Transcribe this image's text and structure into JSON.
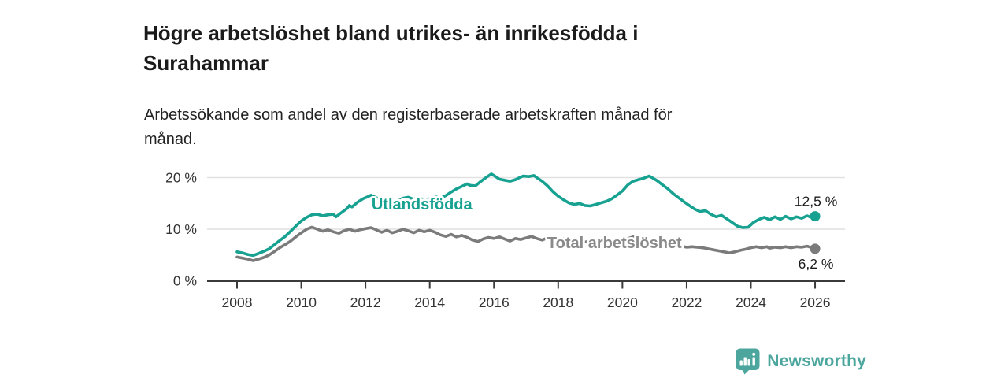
{
  "header": {
    "title_lines": [
      "Högre arbetslöshet bland utrikes- än inrikesfödda i",
      "Surahammar"
    ],
    "subtitle_lines": [
      "Arbetssökande som andel av den registerbaserade arbetskraften månad för",
      "månad."
    ]
  },
  "footer": {
    "brand": "Newsworthy",
    "logo_icon": "bar-chart-speech-bubble-icon"
  },
  "colors": {
    "teal_line": "#16a191",
    "teal_label": "#16a191",
    "gray_line": "#7b7b7b",
    "gray_label": "#8a8a8a",
    "axis": "#3a3a3a",
    "gridline": "#e1e1e1",
    "tick_text": "#333333",
    "value_text": "#1b1b1b",
    "logo_teal": "#4ca69e"
  },
  "chart_data": {
    "type": "line",
    "title": "Högre arbetslöshet bland utrikes- än inrikesfödda i Surahammar",
    "subtitle": "Arbetssökande som andel av den registerbaserade arbetskraften månad för månad.",
    "xlabel": "",
    "ylabel": "",
    "ylim": [
      0,
      22
    ],
    "xlim": [
      2007.1,
      2026.9
    ],
    "grid": "horizontal",
    "legend_position": "inline-labels",
    "yticks": [
      {
        "value": 0,
        "label": "0 %"
      },
      {
        "value": 10,
        "label": "10 %"
      },
      {
        "value": 20,
        "label": "20 %"
      }
    ],
    "xticks": [
      {
        "value": 2008,
        "label": "2008"
      },
      {
        "value": 2010,
        "label": "2010"
      },
      {
        "value": 2012,
        "label": "2012"
      },
      {
        "value": 2014,
        "label": "2014"
      },
      {
        "value": 2016,
        "label": "2016"
      },
      {
        "value": 2018,
        "label": "2018"
      },
      {
        "value": 2020,
        "label": "2020"
      },
      {
        "value": 2022,
        "label": "2022"
      },
      {
        "value": 2024,
        "label": "2024"
      },
      {
        "value": 2026,
        "label": "2026"
      }
    ],
    "series": [
      {
        "name": "Total arbetslöshet",
        "color": "#7b7b7b",
        "label_color": "#8a8a8a",
        "label_anchor": {
          "year": 2017.66,
          "value": 6.34
        },
        "end_label": "6,2 %",
        "end_label_side": "below",
        "end_value": 6.2,
        "points": [
          [
            2008.0,
            4.6
          ],
          [
            2008.17,
            4.4
          ],
          [
            2008.33,
            4.2
          ],
          [
            2008.5,
            3.9
          ],
          [
            2008.67,
            4.2
          ],
          [
            2008.83,
            4.5
          ],
          [
            2009.0,
            5.0
          ],
          [
            2009.17,
            5.7
          ],
          [
            2009.33,
            6.4
          ],
          [
            2009.5,
            7.0
          ],
          [
            2009.67,
            7.7
          ],
          [
            2009.83,
            8.5
          ],
          [
            2010.0,
            9.3
          ],
          [
            2010.17,
            10.0
          ],
          [
            2010.33,
            10.4
          ],
          [
            2010.5,
            10.0
          ],
          [
            2010.67,
            9.6
          ],
          [
            2010.83,
            9.9
          ],
          [
            2011.0,
            9.5
          ],
          [
            2011.17,
            9.2
          ],
          [
            2011.33,
            9.7
          ],
          [
            2011.5,
            10.0
          ],
          [
            2011.67,
            9.6
          ],
          [
            2011.83,
            9.9
          ],
          [
            2012.0,
            10.1
          ],
          [
            2012.17,
            10.3
          ],
          [
            2012.33,
            9.9
          ],
          [
            2012.5,
            9.4
          ],
          [
            2012.67,
            9.8
          ],
          [
            2012.83,
            9.3
          ],
          [
            2013.0,
            9.6
          ],
          [
            2013.17,
            10.0
          ],
          [
            2013.33,
            9.7
          ],
          [
            2013.5,
            9.3
          ],
          [
            2013.67,
            9.8
          ],
          [
            2013.83,
            9.5
          ],
          [
            2014.0,
            9.8
          ],
          [
            2014.17,
            9.4
          ],
          [
            2014.33,
            8.9
          ],
          [
            2014.5,
            8.6
          ],
          [
            2014.67,
            9.0
          ],
          [
            2014.83,
            8.5
          ],
          [
            2015.0,
            8.8
          ],
          [
            2015.17,
            8.4
          ],
          [
            2015.33,
            7.9
          ],
          [
            2015.5,
            7.6
          ],
          [
            2015.67,
            8.1
          ],
          [
            2015.83,
            8.4
          ],
          [
            2016.0,
            8.2
          ],
          [
            2016.17,
            8.5
          ],
          [
            2016.33,
            8.1
          ],
          [
            2016.5,
            7.7
          ],
          [
            2016.67,
            8.2
          ],
          [
            2016.83,
            8.0
          ],
          [
            2017.0,
            8.3
          ],
          [
            2017.17,
            8.6
          ],
          [
            2017.33,
            8.2
          ],
          [
            2017.5,
            7.9
          ],
          [
            2017.67,
            8.3
          ],
          [
            2017.83,
            8.0
          ],
          [
            2018.0,
            7.8
          ],
          [
            2018.17,
            8.1
          ],
          [
            2018.33,
            7.7
          ],
          [
            2018.5,
            7.4
          ],
          [
            2018.67,
            7.8
          ],
          [
            2018.83,
            7.5
          ],
          [
            2019.0,
            7.7
          ],
          [
            2019.17,
            7.4
          ],
          [
            2019.33,
            7.1
          ],
          [
            2019.5,
            7.3
          ],
          [
            2019.67,
            7.6
          ],
          [
            2019.83,
            7.4
          ],
          [
            2020.0,
            7.7
          ],
          [
            2020.17,
            8.2
          ],
          [
            2020.33,
            8.5
          ],
          [
            2020.5,
            8.3
          ],
          [
            2020.67,
            8.0
          ],
          [
            2020.83,
            7.8
          ],
          [
            2021.0,
            7.6
          ],
          [
            2021.17,
            7.3
          ],
          [
            2021.33,
            7.0
          ],
          [
            2021.5,
            6.8
          ],
          [
            2021.67,
            7.0
          ],
          [
            2021.83,
            6.7
          ],
          [
            2022.0,
            6.5
          ],
          [
            2022.17,
            6.6
          ],
          [
            2022.33,
            6.5
          ],
          [
            2022.5,
            6.4
          ],
          [
            2022.67,
            6.2
          ],
          [
            2022.83,
            6.0
          ],
          [
            2023.0,
            5.8
          ],
          [
            2023.17,
            5.6
          ],
          [
            2023.33,
            5.4
          ],
          [
            2023.5,
            5.6
          ],
          [
            2023.67,
            5.9
          ],
          [
            2023.83,
            6.1
          ],
          [
            2024.0,
            6.4
          ],
          [
            2024.17,
            6.6
          ],
          [
            2024.33,
            6.4
          ],
          [
            2024.5,
            6.6
          ],
          [
            2024.58,
            6.3
          ],
          [
            2024.75,
            6.5
          ],
          [
            2024.92,
            6.4
          ],
          [
            2025.08,
            6.6
          ],
          [
            2025.25,
            6.4
          ],
          [
            2025.42,
            6.6
          ],
          [
            2025.58,
            6.5
          ],
          [
            2025.75,
            6.7
          ],
          [
            2025.92,
            6.4
          ],
          [
            2026.0,
            6.2
          ]
        ]
      },
      {
        "name": "Utlandsfödda",
        "color": "#16a191",
        "label_color": "#16a191",
        "label_anchor": {
          "year": 2012.19,
          "value": 13.8
        },
        "end_label": "12,5 %",
        "end_label_side": "above",
        "end_value": 12.5,
        "points": [
          [
            2008.0,
            5.6
          ],
          [
            2008.17,
            5.4
          ],
          [
            2008.33,
            5.1
          ],
          [
            2008.5,
            4.9
          ],
          [
            2008.67,
            5.3
          ],
          [
            2008.83,
            5.7
          ],
          [
            2009.0,
            6.2
          ],
          [
            2009.17,
            7.0
          ],
          [
            2009.33,
            7.8
          ],
          [
            2009.5,
            8.6
          ],
          [
            2009.67,
            9.6
          ],
          [
            2009.83,
            10.6
          ],
          [
            2010.0,
            11.6
          ],
          [
            2010.17,
            12.3
          ],
          [
            2010.33,
            12.8
          ],
          [
            2010.5,
            12.9
          ],
          [
            2010.67,
            12.6
          ],
          [
            2010.83,
            12.8
          ],
          [
            2011.0,
            12.9
          ],
          [
            2011.08,
            12.4
          ],
          [
            2011.25,
            13.2
          ],
          [
            2011.42,
            14.0
          ],
          [
            2011.5,
            14.6
          ],
          [
            2011.58,
            14.3
          ],
          [
            2011.75,
            15.2
          ],
          [
            2011.92,
            15.9
          ],
          [
            2012.08,
            16.3
          ],
          [
            2012.17,
            16.6
          ],
          [
            2012.33,
            16.1
          ],
          [
            2012.5,
            15.7
          ],
          [
            2012.67,
            15.9
          ],
          [
            2012.83,
            15.4
          ],
          [
            2013.0,
            15.6
          ],
          [
            2013.17,
            16.0
          ],
          [
            2013.33,
            16.2
          ],
          [
            2013.5,
            15.8
          ],
          [
            2013.67,
            16.1
          ],
          [
            2013.83,
            15.7
          ],
          [
            2014.0,
            15.9
          ],
          [
            2014.17,
            16.3
          ],
          [
            2014.33,
            16.0
          ],
          [
            2014.5,
            16.5
          ],
          [
            2014.67,
            17.2
          ],
          [
            2014.83,
            17.8
          ],
          [
            2015.0,
            18.3
          ],
          [
            2015.17,
            18.8
          ],
          [
            2015.25,
            18.5
          ],
          [
            2015.42,
            18.4
          ],
          [
            2015.58,
            19.2
          ],
          [
            2015.75,
            20.0
          ],
          [
            2015.92,
            20.7
          ],
          [
            2016.0,
            20.4
          ],
          [
            2016.17,
            19.7
          ],
          [
            2016.33,
            19.5
          ],
          [
            2016.5,
            19.3
          ],
          [
            2016.67,
            19.6
          ],
          [
            2016.83,
            20.1
          ],
          [
            2016.92,
            20.3
          ],
          [
            2017.08,
            20.2
          ],
          [
            2017.25,
            20.4
          ],
          [
            2017.33,
            20.0
          ],
          [
            2017.5,
            19.3
          ],
          [
            2017.67,
            18.4
          ],
          [
            2017.83,
            17.3
          ],
          [
            2018.0,
            16.4
          ],
          [
            2018.17,
            15.7
          ],
          [
            2018.33,
            15.1
          ],
          [
            2018.5,
            14.8
          ],
          [
            2018.67,
            15.0
          ],
          [
            2018.83,
            14.6
          ],
          [
            2019.0,
            14.5
          ],
          [
            2019.17,
            14.8
          ],
          [
            2019.33,
            15.1
          ],
          [
            2019.5,
            15.4
          ],
          [
            2019.67,
            15.9
          ],
          [
            2019.83,
            16.6
          ],
          [
            2020.0,
            17.4
          ],
          [
            2020.17,
            18.6
          ],
          [
            2020.33,
            19.3
          ],
          [
            2020.5,
            19.6
          ],
          [
            2020.67,
            19.9
          ],
          [
            2020.83,
            20.3
          ],
          [
            2020.92,
            20.0
          ],
          [
            2021.08,
            19.4
          ],
          [
            2021.25,
            18.6
          ],
          [
            2021.42,
            17.8
          ],
          [
            2021.58,
            16.9
          ],
          [
            2021.75,
            16.1
          ],
          [
            2021.92,
            15.3
          ],
          [
            2022.08,
            14.6
          ],
          [
            2022.25,
            13.9
          ],
          [
            2022.42,
            13.4
          ],
          [
            2022.58,
            13.6
          ],
          [
            2022.75,
            12.9
          ],
          [
            2022.92,
            12.4
          ],
          [
            2023.08,
            12.7
          ],
          [
            2023.25,
            12.0
          ],
          [
            2023.42,
            11.3
          ],
          [
            2023.58,
            10.6
          ],
          [
            2023.75,
            10.3
          ],
          [
            2023.92,
            10.4
          ],
          [
            2024.08,
            11.3
          ],
          [
            2024.25,
            11.9
          ],
          [
            2024.42,
            12.3
          ],
          [
            2024.58,
            11.8
          ],
          [
            2024.75,
            12.4
          ],
          [
            2024.92,
            11.9
          ],
          [
            2025.08,
            12.5
          ],
          [
            2025.25,
            12.0
          ],
          [
            2025.42,
            12.4
          ],
          [
            2025.58,
            12.1
          ],
          [
            2025.75,
            12.6
          ],
          [
            2025.92,
            12.2
          ],
          [
            2026.0,
            12.5
          ]
        ]
      }
    ]
  }
}
